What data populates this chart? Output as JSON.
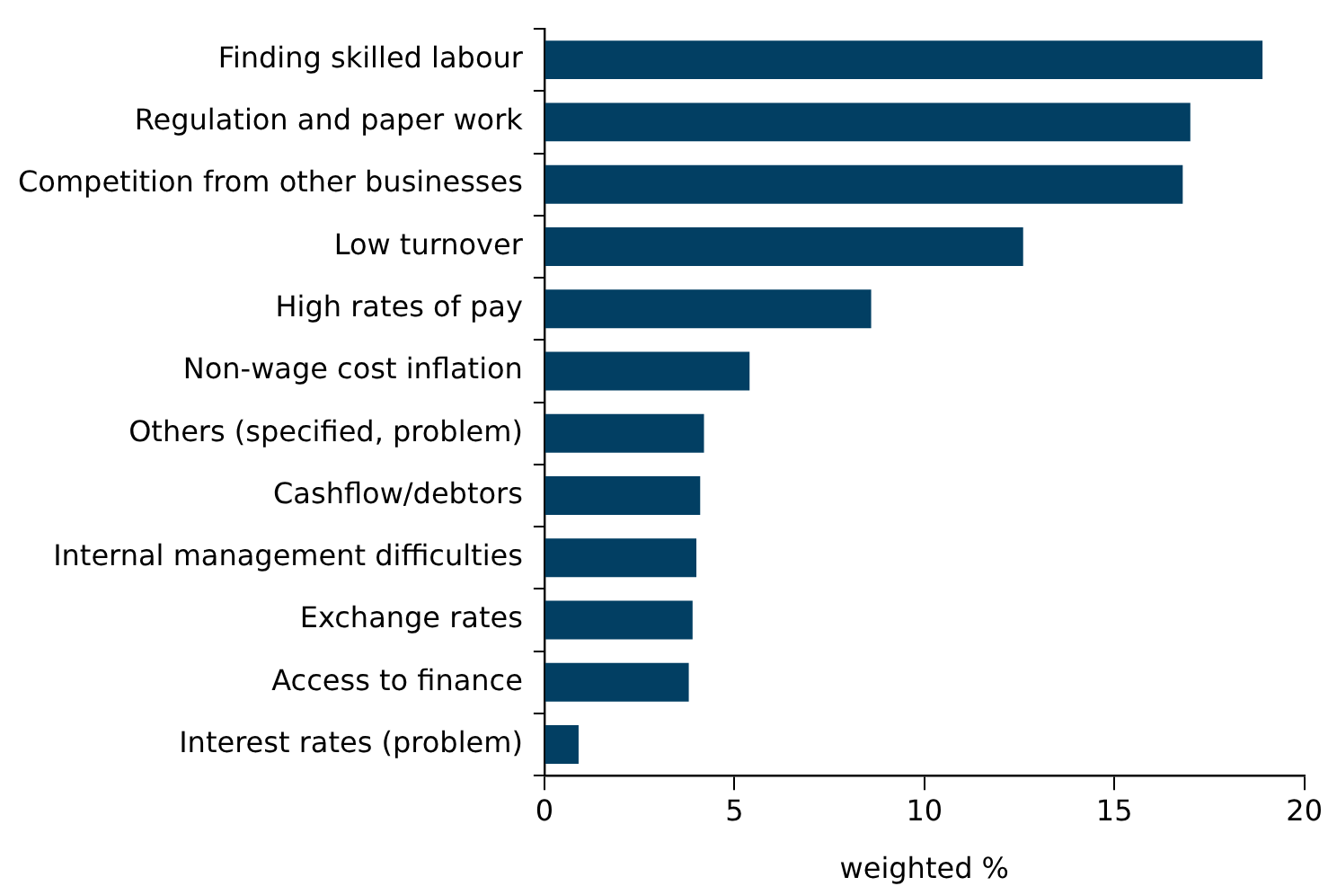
{
  "chart_data": {
    "type": "bar",
    "orientation": "horizontal",
    "xlabel": "weighted %",
    "categories": [
      "Finding skilled labour",
      "Regulation and paper work",
      "Competition from other businesses",
      "Low turnover",
      "High rates of pay",
      "Non-wage cost inflation",
      "Others (specified, problem)",
      "Cashflow/debtors",
      "Internal management difficulties",
      "Exchange rates",
      "Access to finance",
      "Interest rates (problem)"
    ],
    "values": [
      18.9,
      17.0,
      16.8,
      12.6,
      8.6,
      5.4,
      4.2,
      4.1,
      4.0,
      3.9,
      3.8,
      0.9
    ],
    "color": "#023f63",
    "xlim": [
      0,
      20
    ],
    "xticks": [
      0,
      5,
      10,
      15,
      20
    ],
    "grid": false,
    "legend": false
  }
}
